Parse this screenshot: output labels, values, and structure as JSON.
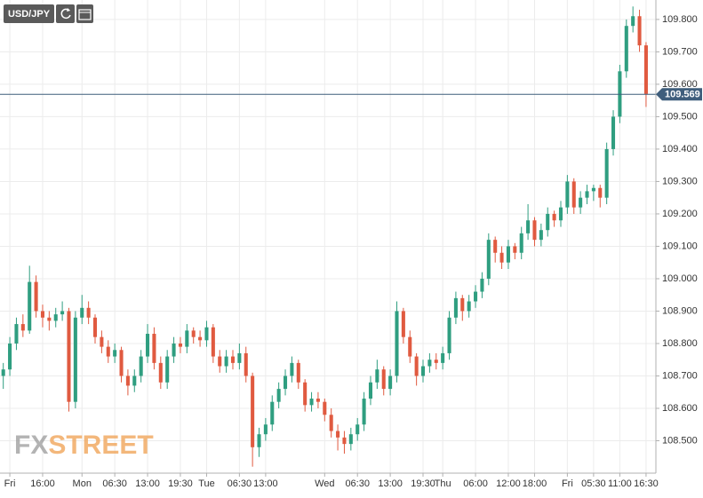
{
  "symbol": "USD/JPY",
  "logo": {
    "first": "FX",
    "second": "STREET"
  },
  "chart_data": {
    "type": "candlestick",
    "up_color": "#2f9e80",
    "down_color": "#e05a40",
    "grid": true,
    "current_price": 109.569,
    "current_price_color": "#3f5e7c",
    "ylim": [
      108.4,
      109.86
    ],
    "yticks": [
      {
        "value": 108.5,
        "label": "108.500"
      },
      {
        "value": 108.6,
        "label": "108.600"
      },
      {
        "value": 108.7,
        "label": "108.700"
      },
      {
        "value": 108.8,
        "label": "108.800"
      },
      {
        "value": 108.9,
        "label": "108.900"
      },
      {
        "value": 109.0,
        "label": "109.000"
      },
      {
        "value": 109.1,
        "label": "109.100"
      },
      {
        "value": 109.2,
        "label": "109.200"
      },
      {
        "value": 109.3,
        "label": "109.300"
      },
      {
        "value": 109.4,
        "label": "109.400"
      },
      {
        "value": 109.5,
        "label": "109.500"
      },
      {
        "value": 109.6,
        "label": "109.600"
      },
      {
        "value": 109.7,
        "label": "109.700"
      },
      {
        "value": 109.8,
        "label": "109.800"
      }
    ],
    "categories": [
      null,
      "Fri",
      null,
      null,
      null,
      null,
      "16:00",
      null,
      null,
      null,
      null,
      null,
      "Mon",
      null,
      null,
      null,
      null,
      "06:30",
      null,
      null,
      null,
      null,
      "13:00",
      null,
      null,
      null,
      null,
      "19:30",
      null,
      null,
      null,
      "Tue",
      null,
      null,
      null,
      null,
      "06:30",
      null,
      null,
      null,
      "13:00",
      null,
      null,
      null,
      null,
      null,
      null,
      null,
      null,
      "Wed",
      null,
      null,
      null,
      null,
      "06:30",
      null,
      null,
      null,
      null,
      "13:00",
      null,
      null,
      null,
      null,
      "19:30",
      null,
      null,
      "Thu",
      null,
      null,
      null,
      null,
      "06:00",
      null,
      null,
      null,
      null,
      "12:00",
      null,
      null,
      null,
      "18:00",
      null,
      null,
      null,
      null,
      "Fri",
      null,
      null,
      null,
      "05:30",
      null,
      null,
      null,
      "11:00",
      null,
      null,
      null,
      "16:30"
    ],
    "open": [
      108.7,
      108.72,
      108.8,
      108.86,
      108.84,
      108.99,
      108.9,
      108.88,
      108.87,
      108.89,
      108.9,
      108.62,
      108.88,
      108.91,
      108.88,
      108.82,
      108.79,
      108.76,
      108.78,
      108.7,
      108.67,
      108.7,
      108.76,
      108.83,
      108.74,
      108.68,
      108.76,
      108.8,
      108.79,
      108.84,
      108.82,
      108.81,
      108.85,
      108.76,
      108.73,
      108.76,
      108.74,
      108.77,
      108.7,
      108.48,
      108.52,
      108.55,
      108.62,
      108.66,
      108.7,
      108.74,
      108.68,
      108.61,
      108.63,
      108.62,
      108.58,
      108.53,
      108.51,
      108.49,
      108.52,
      108.55,
      108.63,
      108.68,
      108.72,
      108.66,
      108.7,
      108.9,
      108.82,
      108.76,
      108.7,
      108.73,
      108.75,
      108.74,
      108.77,
      108.88,
      108.94,
      108.9,
      108.93,
      108.96,
      109.0,
      109.12,
      109.08,
      109.05,
      109.1,
      109.08,
      109.14,
      109.18,
      109.12,
      109.15,
      109.2,
      109.18,
      109.22,
      109.3,
      109.22,
      109.25,
      109.27,
      109.28,
      109.25,
      109.4,
      109.5,
      109.64,
      109.78,
      109.81,
      109.72
    ],
    "high": [
      108.74,
      108.82,
      108.88,
      108.89,
      109.04,
      109.01,
      108.92,
      108.9,
      108.91,
      108.93,
      108.91,
      108.9,
      108.95,
      108.93,
      108.89,
      108.84,
      108.81,
      108.8,
      108.79,
      108.72,
      108.72,
      108.78,
      108.86,
      108.85,
      108.76,
      108.78,
      108.82,
      108.82,
      108.86,
      108.85,
      108.84,
      108.87,
      108.86,
      108.78,
      108.78,
      108.78,
      108.8,
      108.79,
      108.71,
      108.54,
      108.57,
      108.64,
      108.68,
      108.72,
      108.76,
      108.75,
      108.69,
      108.65,
      108.65,
      108.63,
      108.6,
      108.55,
      108.53,
      108.54,
      108.57,
      108.65,
      108.7,
      108.75,
      108.73,
      108.72,
      108.93,
      108.91,
      108.84,
      108.77,
      108.75,
      108.77,
      108.77,
      108.79,
      108.9,
      108.96,
      108.95,
      108.95,
      108.98,
      109.02,
      109.14,
      109.13,
      109.1,
      109.12,
      109.11,
      109.16,
      109.23,
      109.19,
      109.17,
      109.22,
      109.21,
      109.24,
      109.32,
      109.31,
      109.27,
      109.29,
      109.29,
      109.29,
      109.42,
      109.52,
      109.66,
      109.8,
      109.84,
      109.83,
      109.73
    ],
    "low": [
      108.66,
      108.7,
      108.78,
      108.82,
      108.83,
      108.88,
      108.85,
      108.84,
      108.85,
      108.87,
      108.59,
      108.6,
      108.86,
      108.86,
      108.8,
      108.77,
      108.74,
      108.74,
      108.68,
      108.64,
      108.65,
      108.68,
      108.74,
      108.72,
      108.66,
      108.66,
      108.74,
      108.77,
      108.77,
      108.8,
      108.79,
      108.79,
      108.74,
      108.71,
      108.71,
      108.72,
      108.72,
      108.68,
      108.42,
      108.45,
      108.5,
      108.53,
      108.6,
      108.64,
      108.68,
      108.66,
      108.59,
      108.59,
      108.6,
      108.56,
      108.51,
      108.47,
      108.46,
      108.47,
      108.5,
      108.53,
      108.61,
      108.66,
      108.64,
      108.64,
      108.68,
      108.8,
      108.74,
      108.67,
      108.68,
      108.71,
      108.72,
      108.72,
      108.75,
      108.86,
      108.87,
      108.88,
      108.91,
      108.94,
      108.98,
      109.05,
      109.03,
      109.03,
      109.06,
      109.06,
      109.12,
      109.1,
      109.1,
      109.13,
      109.16,
      109.16,
      109.2,
      109.2,
      109.2,
      109.23,
      109.24,
      109.22,
      109.23,
      109.38,
      109.48,
      109.62,
      109.76,
      109.7,
      109.53
    ],
    "close": [
      108.72,
      108.8,
      108.86,
      108.84,
      108.99,
      108.9,
      108.88,
      108.87,
      108.89,
      108.9,
      108.62,
      108.88,
      108.91,
      108.88,
      108.82,
      108.79,
      108.76,
      108.78,
      108.7,
      108.67,
      108.7,
      108.76,
      108.83,
      108.74,
      108.68,
      108.76,
      108.8,
      108.79,
      108.84,
      108.82,
      108.81,
      108.85,
      108.76,
      108.73,
      108.76,
      108.74,
      108.77,
      108.7,
      108.48,
      108.52,
      108.55,
      108.62,
      108.66,
      108.7,
      108.74,
      108.68,
      108.61,
      108.63,
      108.62,
      108.58,
      108.53,
      108.51,
      108.49,
      108.52,
      108.55,
      108.63,
      108.68,
      108.72,
      108.66,
      108.7,
      108.9,
      108.82,
      108.76,
      108.7,
      108.73,
      108.75,
      108.74,
      108.77,
      108.88,
      108.94,
      108.9,
      108.93,
      108.96,
      109.0,
      109.12,
      109.08,
      109.05,
      109.1,
      109.08,
      109.14,
      109.18,
      109.12,
      109.15,
      109.2,
      109.18,
      109.22,
      109.3,
      109.22,
      109.25,
      109.27,
      109.28,
      109.25,
      109.4,
      109.5,
      109.64,
      109.78,
      109.81,
      109.72,
      109.57
    ]
  }
}
